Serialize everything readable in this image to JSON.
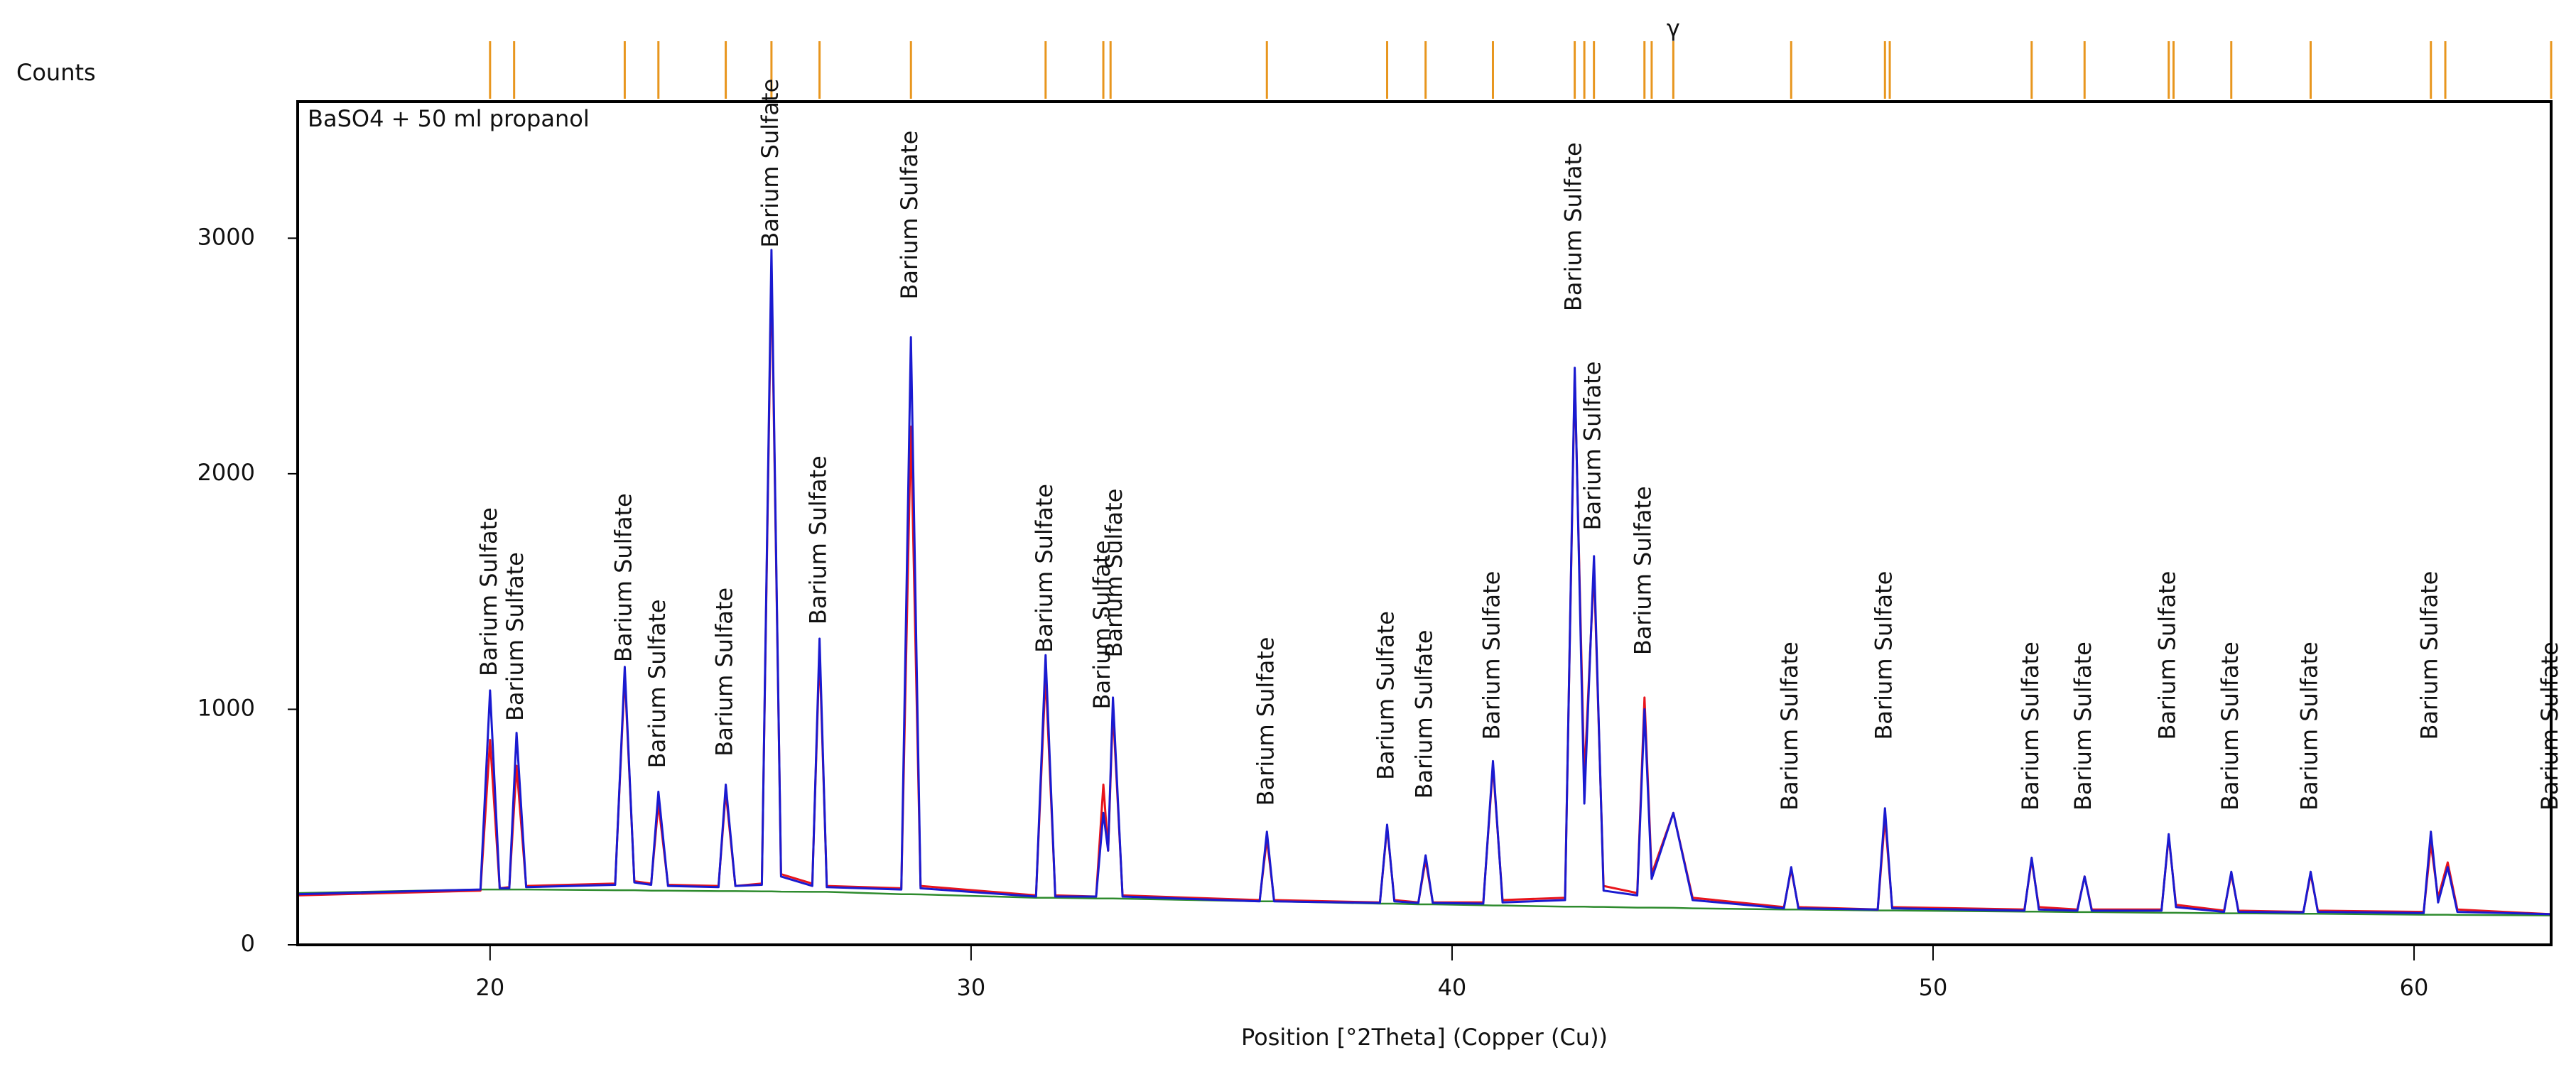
{
  "chart_data": {
    "type": "line",
    "title": "BaSO4 + 50 ml propanol",
    "y_label": "Counts",
    "x_label": "Position [°2Theta] (Copper (Cu))",
    "xlim": [
      16,
      62.85
    ],
    "ylim": [
      0,
      3580
    ],
    "xticks": [
      20,
      30,
      40,
      50,
      60
    ],
    "yticks": [
      0,
      1000,
      2000,
      3000
    ],
    "x": [
      16.0,
      19.8,
      20.0,
      20.2,
      20.4,
      20.55,
      20.75,
      22.6,
      22.8,
      23.0,
      23.35,
      23.5,
      23.7,
      24.75,
      24.9,
      25.1,
      25.65,
      25.85,
      26.05,
      26.7,
      26.85,
      27.0,
      28.55,
      28.75,
      28.95,
      31.35,
      31.55,
      31.75,
      32.6,
      32.75,
      32.85,
      32.95,
      33.15,
      36.0,
      36.15,
      36.3,
      38.5,
      38.65,
      38.8,
      39.3,
      39.45,
      39.6,
      40.65,
      40.85,
      41.05,
      42.35,
      42.55,
      42.75,
      42.95,
      43.15,
      43.85,
      44.0,
      44.15,
      44.6,
      45.0,
      46.9,
      47.05,
      47.2,
      48.85,
      49.0,
      49.15,
      51.9,
      52.05,
      52.2,
      53.0,
      53.15,
      53.3,
      54.75,
      54.9,
      55.05,
      56.05,
      56.2,
      56.35,
      57.7,
      57.85,
      58.0,
      60.2,
      60.35,
      60.5,
      60.7,
      60.9,
      62.85
    ],
    "series": [
      {
        "color": "#e8141b",
        "values": [
          210,
          230,
          870,
          240,
          245,
          760,
          250,
          260,
          1150,
          270,
          260,
          600,
          255,
          250,
          650,
          250,
          260,
          2880,
          300,
          260,
          1250,
          250,
          240,
          2200,
          250,
          210,
          1150,
          210,
          205,
          680,
          400,
          1000,
          210,
          190,
          450,
          190,
          180,
          500,
          190,
          180,
          360,
          180,
          180,
          760,
          190,
          200,
          2420,
          700,
          1600,
          250,
          220,
          1050,
          300,
          560,
          200,
          160,
          320,
          160,
          150,
          540,
          160,
          150,
          360,
          160,
          150,
          290,
          150,
          150,
          460,
          170,
          145,
          300,
          145,
          140,
          300,
          145,
          140,
          430,
          200,
          350,
          150,
          130
        ]
      },
      {
        "color": "#1a1ad0",
        "values": [
          215,
          235,
          1080,
          240,
          240,
          900,
          245,
          255,
          1180,
          265,
          255,
          650,
          250,
          245,
          680,
          250,
          255,
          2950,
          290,
          250,
          1300,
          245,
          235,
          2580,
          240,
          205,
          1230,
          205,
          205,
          560,
          400,
          1050,
          205,
          185,
          480,
          185,
          178,
          510,
          185,
          178,
          380,
          178,
          175,
          780,
          180,
          190,
          2450,
          600,
          1650,
          230,
          210,
          1000,
          280,
          560,
          190,
          155,
          330,
          155,
          150,
          580,
          155,
          145,
          370,
          150,
          145,
          290,
          145,
          145,
          470,
          160,
          140,
          310,
          140,
          138,
          310,
          140,
          135,
          480,
          180,
          330,
          140,
          130
        ]
      },
      {
        "color": "#2e8b2e",
        "values": [
          220,
          235,
          235,
          235,
          235,
          235,
          235,
          232,
          232,
          232,
          230,
          230,
          230,
          228,
          228,
          228,
          227,
          227,
          226,
          225,
          225,
          225,
          215,
          215,
          214,
          200,
          200,
          200,
          197,
          197,
          197,
          197,
          196,
          185,
          185,
          185,
          175,
          175,
          175,
          172,
          172,
          172,
          168,
          167,
          167,
          162,
          162,
          162,
          161,
          161,
          158,
          158,
          158,
          157,
          155,
          150,
          150,
          150,
          146,
          146,
          146,
          141,
          141,
          141,
          139,
          139,
          139,
          136,
          136,
          136,
          134,
          134,
          134,
          132,
          132,
          132,
          128,
          128,
          128,
          128,
          127,
          125
        ]
      }
    ],
    "annotations": [
      {
        "x": 20.0,
        "y": 1140,
        "text": "Barium Sulfate"
      },
      {
        "x": 20.55,
        "y": 950,
        "text": "Barium Sulfate"
      },
      {
        "x": 22.8,
        "y": 1200,
        "text": "Barium Sulfate"
      },
      {
        "x": 23.5,
        "y": 750,
        "text": "Barium Sulfate"
      },
      {
        "x": 24.9,
        "y": 800,
        "text": "Barium Sulfate"
      },
      {
        "x": 25.85,
        "y": 2960,
        "text": "Barium Sulfate"
      },
      {
        "x": 26.85,
        "y": 1360,
        "text": "Barium Sulfate"
      },
      {
        "x": 28.75,
        "y": 2740,
        "text": "Barium Sulfate"
      },
      {
        "x": 31.55,
        "y": 1240,
        "text": "Barium Sulfate"
      },
      {
        "x": 32.75,
        "y": 1000,
        "text": "Barium Sulfate"
      },
      {
        "x": 33.0,
        "y": 1220,
        "text": "Barium Sulfate"
      },
      {
        "x": 36.15,
        "y": 590,
        "text": "Barium Sulfate"
      },
      {
        "x": 38.65,
        "y": 700,
        "text": "Barium Sulfate"
      },
      {
        "x": 39.45,
        "y": 620,
        "text": "Barium Sulfate"
      },
      {
        "x": 40.85,
        "y": 870,
        "text": "Barium Sulfate"
      },
      {
        "x": 42.55,
        "y": 2690,
        "text": "Barium Sulfate"
      },
      {
        "x": 42.95,
        "y": 1760,
        "text": "Barium Sulfate"
      },
      {
        "x": 44.0,
        "y": 1230,
        "text": "Barium Sulfate"
      },
      {
        "x": 47.05,
        "y": 570,
        "text": "Barium Sulfate"
      },
      {
        "x": 49.0,
        "y": 870,
        "text": "Barium Sulfate"
      },
      {
        "x": 52.05,
        "y": 570,
        "text": "Barium Sulfate"
      },
      {
        "x": 53.15,
        "y": 570,
        "text": "Barium Sulfate"
      },
      {
        "x": 54.9,
        "y": 870,
        "text": "Barium Sulfate"
      },
      {
        "x": 56.2,
        "y": 570,
        "text": "Barium Sulfate"
      },
      {
        "x": 57.85,
        "y": 570,
        "text": "Barium Sulfate"
      },
      {
        "x": 60.35,
        "y": 870,
        "text": "Barium Sulfate"
      },
      {
        "x": 62.85,
        "y": 570,
        "text": "Barium Sulfate"
      }
    ],
    "phase_markers": [
      20.0,
      20.5,
      22.8,
      23.5,
      24.9,
      25.85,
      26.85,
      28.75,
      31.55,
      32.75,
      32.9,
      36.15,
      38.65,
      39.45,
      40.85,
      42.55,
      42.75,
      42.95,
      44.0,
      44.15,
      44.6,
      47.05,
      49.0,
      49.1,
      52.05,
      53.15,
      54.9,
      55.0,
      56.2,
      57.85,
      60.35,
      60.65,
      62.85
    ],
    "phase_marker_color": "#e8961e",
    "phase_symbol": {
      "x": 44.6,
      "text": "γ"
    }
  }
}
